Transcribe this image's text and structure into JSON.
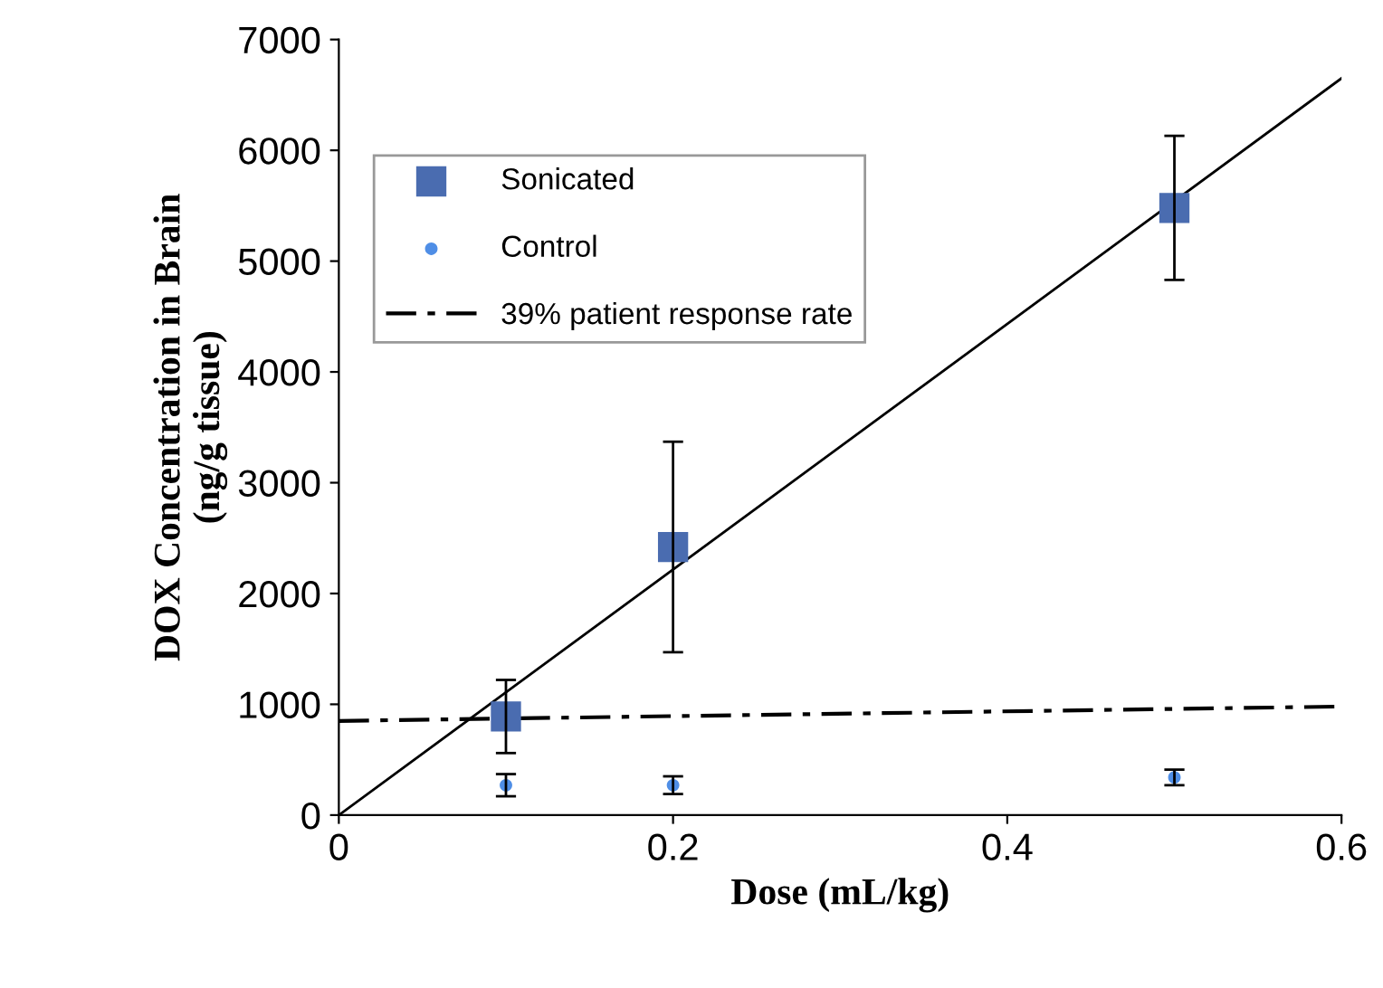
{
  "chart_data": {
    "type": "scatter",
    "xlabel": "Dose (mL/kg)",
    "ylabel": "DOX Concentration in Brain\n(ng/g tissue)",
    "xlim": [
      0,
      0.6
    ],
    "xticks": [
      0,
      0.2,
      0.4,
      0.6
    ],
    "ylim": [
      0,
      7000
    ],
    "yticks": [
      0,
      1000,
      2000,
      3000,
      4000,
      5000,
      6000,
      7000
    ],
    "grid": false,
    "legend": "top left",
    "series": [
      {
        "name": "Sonicated",
        "marker": "square",
        "color": "#4a6cb0",
        "x": [
          0.1,
          0.2,
          0.5
        ],
        "values": [
          890,
          2420,
          5480
        ],
        "errors": [
          330,
          950,
          650
        ]
      },
      {
        "name": "Control",
        "marker": "circle",
        "color": "#4f8ee6",
        "x": [
          0.1,
          0.2,
          0.5
        ],
        "values": [
          270,
          270,
          340
        ],
        "errors": [
          100,
          80,
          70
        ]
      },
      {
        "name": "39% patient response rate",
        "type": "line",
        "line_style": "dashed",
        "marker": "none",
        "color": "#000000",
        "x": [
          0,
          0.6
        ],
        "values": [
          850,
          980
        ]
      },
      {
        "type": "line",
        "line_style": "solid",
        "marker": "none",
        "color": "#000000",
        "x": [
          0,
          0.6
        ],
        "values": [
          0,
          6650
        ]
      }
    ]
  }
}
